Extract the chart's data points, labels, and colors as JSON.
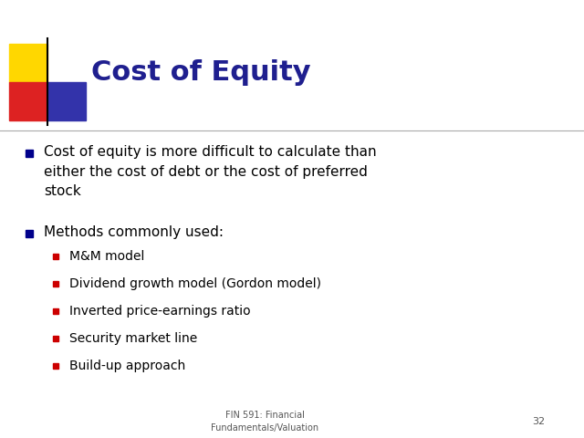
{
  "title": "Cost of Equity",
  "title_color": "#1F1F8F",
  "title_fontsize": 22,
  "background_color": "#FFFFFF",
  "slide_footer": "FIN 591: Financial\nFundamentals/Valuation",
  "slide_number": "32",
  "bullet_color": "#00008B",
  "sub_bullet_color": "#CC0000",
  "text_color": "#000000",
  "bullet1_lines": [
    "Cost of equity is more difficult to calculate than",
    "either the cost of debt or the cost of preferred",
    "stock"
  ],
  "bullet2": "Methods commonly used:",
  "sub_bullets": [
    "M&M model",
    "Dividend growth model (Gordon model)",
    "Inverted price-earnings ratio",
    "Security market line",
    "Build-up approach"
  ],
  "logo_colors": {
    "yellow": "#FFD700",
    "red": "#DD2222",
    "blue": "#3333AA"
  },
  "line_color": "#AAAAAA",
  "footer_color": "#555555"
}
